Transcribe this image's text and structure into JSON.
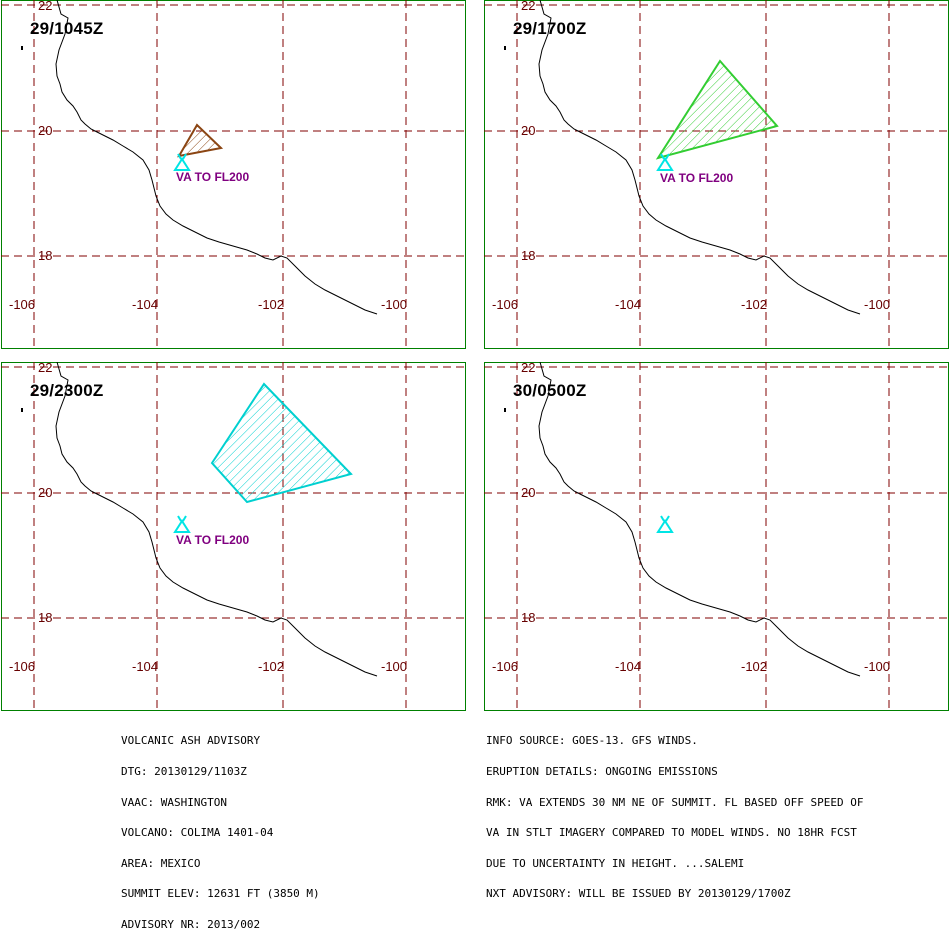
{
  "map": {
    "lat_labels": [
      "22",
      "20",
      "18"
    ],
    "lon_labels": [
      "-106",
      "-104",
      "-102",
      "-100"
    ],
    "colors": {
      "frame": "#008000",
      "grid": "#800000",
      "coast": "#000000",
      "volcano": "#00e5e5",
      "va_text": "#800080",
      "panel1_ash": "#8b4513",
      "panel2_ash": "#32cd32",
      "panel3_ash": "#00d0d0"
    },
    "volcano_icon": "volcano-triangle-icon"
  },
  "panels": [
    {
      "time": "29/1045Z",
      "va_label": "VA TO FL200"
    },
    {
      "time": "29/1700Z",
      "va_label": "VA TO FL200"
    },
    {
      "time": "29/2300Z",
      "va_label": "VA TO FL200"
    },
    {
      "time": "30/0500Z",
      "va_label": ""
    }
  ],
  "advisory_left": [
    "VOLCANIC ASH ADVISORY",
    "DTG: 20130129/1103Z",
    "VAAC: WASHINGTON",
    "VOLCANO: COLIMA 1401-04",
    "AREA: MEXICO",
    "SUMMIT ELEV: 12631 FT (3850 M)",
    "ADVISORY NR: 2013/002"
  ],
  "advisory_right": [
    "INFO SOURCE: GOES-13. GFS WINDS.",
    "ERUPTION DETAILS: ONGOING EMISSIONS",
    "RMK: VA EXTENDS 30 NM NE OF SUMMIT. FL BASED OFF SPEED OF",
    "VA IN STLT IMAGERY COMPARED TO MODEL WINDS. NO 18HR FCST",
    "DUE TO UNCERTAINTY IN HEIGHT. ...SALEMI",
    "NXT ADVISORY: WILL BE ISSUED BY 20130129/1700Z"
  ]
}
